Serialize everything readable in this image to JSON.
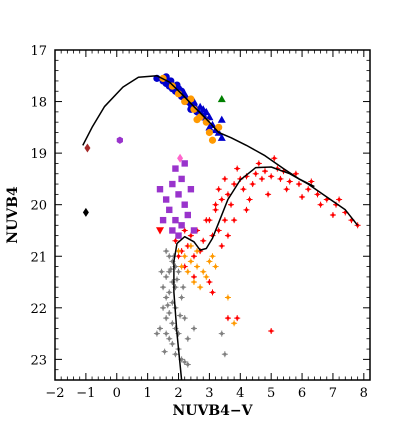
{
  "chart_data": {
    "type": "scatter",
    "xlabel": "NUVB4−V",
    "ylabel": "NUVB4",
    "xlim": [
      -2,
      8.2
    ],
    "ylim": [
      23.4,
      17
    ],
    "y_inverted": true,
    "xticks": [
      -2,
      -1,
      0,
      1,
      2,
      3,
      4,
      5,
      6,
      7,
      8
    ],
    "xtick_labels": [
      "−2",
      "−1",
      "0",
      "1",
      "2",
      "3",
      "4",
      "5",
      "6",
      "7",
      "8"
    ],
    "yticks": [
      17,
      18,
      19,
      20,
      21,
      22,
      23
    ],
    "ytick_labels": [
      "17",
      "18",
      "19",
      "20",
      "21",
      "22",
      "23"
    ],
    "grid": false,
    "colors": {
      "horizontal_branch": "#0000cc",
      "hb_orange": "#ff9900",
      "red_giant_branch": "#ff0000",
      "subgiant": "#ff9900",
      "main_sequence": "#808080",
      "purple": "#9933cc",
      "green": "#008000",
      "black": "#000000",
      "brown": "#a52a2a",
      "pink": "#ff66cc",
      "isochrone": "#000000"
    },
    "isochrones": [
      {
        "points": [
          [
            -1.1,
            18.85
          ],
          [
            -0.8,
            18.5
          ],
          [
            -0.4,
            18.1
          ],
          [
            0.2,
            17.72
          ],
          [
            0.7,
            17.53
          ],
          [
            1.3,
            17.5
          ],
          [
            1.7,
            17.62
          ],
          [
            2.1,
            17.85
          ],
          [
            2.5,
            18.1
          ],
          [
            3.0,
            18.4
          ],
          [
            3.3,
            18.6
          ],
          [
            3.7,
            18.7
          ],
          [
            4.2,
            18.85
          ],
          [
            4.8,
            19.05
          ],
          [
            5.4,
            19.3
          ],
          [
            5.9,
            19.5
          ],
          [
            6.4,
            19.65
          ]
        ]
      },
      {
        "points": [
          [
            2.1,
            23.4
          ],
          [
            1.95,
            22.5
          ],
          [
            1.85,
            21.7
          ],
          [
            1.85,
            21.1
          ],
          [
            1.95,
            20.75
          ],
          [
            2.2,
            20.62
          ],
          [
            2.5,
            20.72
          ],
          [
            2.7,
            20.88
          ],
          [
            2.9,
            20.85
          ],
          [
            3.1,
            20.65
          ],
          [
            3.3,
            20.35
          ],
          [
            3.6,
            19.9
          ],
          [
            4.0,
            19.52
          ],
          [
            4.5,
            19.28
          ],
          [
            5.0,
            19.27
          ],
          [
            5.6,
            19.4
          ],
          [
            6.2,
            19.6
          ],
          [
            6.8,
            19.85
          ],
          [
            7.4,
            20.1
          ],
          [
            7.8,
            20.4
          ]
        ]
      }
    ],
    "series": [
      {
        "marker": "circle",
        "color": "#0000cc",
        "points": [
          [
            1.3,
            17.55
          ],
          [
            1.5,
            17.6
          ],
          [
            1.6,
            17.65
          ],
          [
            1.7,
            17.7
          ],
          [
            1.75,
            17.6
          ],
          [
            1.8,
            17.75
          ],
          [
            1.9,
            17.8
          ],
          [
            2.0,
            17.75
          ],
          [
            2.1,
            17.9
          ],
          [
            2.2,
            17.95
          ],
          [
            2.3,
            18.0
          ],
          [
            2.1,
            17.8
          ],
          [
            2.4,
            18.05
          ],
          [
            2.5,
            18.1
          ],
          [
            2.6,
            18.2
          ],
          [
            2.4,
            18.15
          ],
          [
            1.6,
            17.52
          ],
          [
            1.95,
            17.68
          ],
          [
            2.7,
            18.25
          ],
          [
            2.8,
            18.3
          ]
        ]
      },
      {
        "marker": "triangle",
        "color": "#0000cc",
        "points": [
          [
            2.2,
            17.85
          ],
          [
            2.5,
            18.0
          ],
          [
            2.7,
            18.1
          ],
          [
            2.9,
            18.2
          ],
          [
            3.0,
            18.3
          ],
          [
            3.1,
            18.45
          ],
          [
            3.2,
            18.55
          ],
          [
            2.8,
            18.15
          ],
          [
            3.3,
            18.6
          ],
          [
            3.4,
            18.7
          ],
          [
            3.4,
            18.35
          ],
          [
            3.0,
            18.5
          ]
        ]
      },
      {
        "marker": "circle",
        "color": "#ff9900",
        "points": [
          [
            1.5,
            17.55
          ],
          [
            1.8,
            17.7
          ],
          [
            2.0,
            17.85
          ],
          [
            2.2,
            18.0
          ],
          [
            2.5,
            18.15
          ],
          [
            2.7,
            18.3
          ],
          [
            2.9,
            18.4
          ],
          [
            3.0,
            18.6
          ],
          [
            3.1,
            18.75
          ],
          [
            3.3,
            18.5
          ],
          [
            2.4,
            17.95
          ],
          [
            2.6,
            18.35
          ]
        ]
      },
      {
        "marker": "cross",
        "color": "#ff0000",
        "points": [
          [
            3.0,
            20.3
          ],
          [
            3.2,
            20.1
          ],
          [
            3.4,
            19.9
          ],
          [
            3.6,
            19.8
          ],
          [
            3.8,
            19.6
          ],
          [
            4.0,
            19.5
          ],
          [
            4.2,
            19.45
          ],
          [
            4.5,
            19.4
          ],
          [
            4.8,
            19.35
          ],
          [
            5.0,
            19.45
          ],
          [
            5.3,
            19.5
          ],
          [
            5.6,
            19.55
          ],
          [
            5.9,
            19.6
          ],
          [
            6.2,
            19.7
          ],
          [
            6.5,
            19.8
          ],
          [
            6.8,
            19.9
          ],
          [
            7.1,
            20.0
          ],
          [
            7.4,
            20.15
          ],
          [
            7.6,
            20.3
          ],
          [
            7.8,
            20.4
          ],
          [
            3.1,
            20.6
          ],
          [
            3.3,
            20.5
          ],
          [
            3.5,
            20.3
          ],
          [
            2.8,
            20.7
          ],
          [
            2.6,
            20.5
          ],
          [
            2.4,
            20.6
          ],
          [
            2.3,
            20.8
          ],
          [
            2.1,
            20.9
          ],
          [
            2.0,
            21.0
          ],
          [
            2.2,
            21.2
          ],
          [
            2.5,
            21.4
          ],
          [
            3.7,
            20.0
          ],
          [
            4.1,
            19.7
          ],
          [
            4.4,
            19.6
          ],
          [
            4.7,
            19.5
          ],
          [
            5.5,
            19.7
          ],
          [
            6.0,
            19.85
          ],
          [
            6.6,
            20.0
          ],
          [
            7.0,
            20.2
          ],
          [
            3.9,
            19.3
          ],
          [
            4.6,
            19.2
          ],
          [
            5.2,
            19.3
          ],
          [
            5.8,
            19.4
          ],
          [
            3.5,
            19.5
          ],
          [
            3.2,
            20.0
          ],
          [
            2.9,
            20.3
          ],
          [
            3.6,
            20.6
          ],
          [
            4.3,
            19.9
          ],
          [
            4.9,
            19.8
          ],
          [
            5.1,
            19.1
          ],
          [
            3.0,
            21.5
          ],
          [
            3.1,
            21.7
          ],
          [
            3.6,
            22.2
          ],
          [
            3.9,
            22.2
          ],
          [
            5.0,
            22.45
          ],
          [
            2.7,
            20.9
          ],
          [
            2.5,
            21.0
          ],
          [
            3.4,
            20.8
          ],
          [
            3.8,
            20.3
          ],
          [
            4.2,
            20.1
          ],
          [
            6.3,
            19.55
          ],
          [
            7.2,
            19.9
          ],
          [
            2.2,
            20.5
          ],
          [
            1.9,
            20.7
          ],
          [
            3.3,
            19.7
          ],
          [
            5.4,
            19.35
          ]
        ]
      },
      {
        "marker": "cross",
        "color": "#ff9900",
        "points": [
          [
            2.0,
            20.9
          ],
          [
            2.2,
            21.0
          ],
          [
            2.4,
            21.1
          ],
          [
            2.6,
            21.2
          ],
          [
            2.8,
            21.3
          ],
          [
            3.0,
            21.1
          ],
          [
            2.9,
            21.4
          ],
          [
            2.5,
            21.5
          ],
          [
            2.3,
            21.3
          ],
          [
            3.1,
            21.0
          ],
          [
            2.7,
            21.6
          ],
          [
            2.1,
            21.2
          ],
          [
            3.2,
            21.2
          ],
          [
            2.4,
            20.8
          ],
          [
            2.6,
            20.9
          ],
          [
            3.8,
            22.3
          ],
          [
            3.6,
            21.8
          ]
        ]
      },
      {
        "marker": "cross",
        "color": "#808080",
        "points": [
          [
            1.6,
            20.9
          ],
          [
            1.7,
            21.0
          ],
          [
            1.8,
            21.1
          ],
          [
            1.9,
            21.2
          ],
          [
            1.7,
            21.3
          ],
          [
            1.6,
            21.4
          ],
          [
            1.8,
            21.5
          ],
          [
            1.9,
            21.6
          ],
          [
            1.7,
            21.7
          ],
          [
            1.6,
            21.8
          ],
          [
            1.8,
            21.9
          ],
          [
            1.9,
            22.0
          ],
          [
            1.7,
            22.1
          ],
          [
            1.6,
            22.2
          ],
          [
            1.8,
            22.3
          ],
          [
            1.9,
            22.4
          ],
          [
            2.0,
            22.5
          ],
          [
            1.7,
            22.6
          ],
          [
            1.8,
            22.7
          ],
          [
            2.0,
            22.8
          ],
          [
            1.9,
            22.9
          ],
          [
            2.1,
            23.0
          ],
          [
            1.5,
            21.6
          ],
          [
            1.5,
            22.0
          ],
          [
            2.0,
            21.3
          ],
          [
            2.1,
            21.8
          ],
          [
            1.6,
            22.5
          ],
          [
            2.2,
            22.2
          ],
          [
            1.4,
            22.4
          ],
          [
            2.3,
            22.6
          ],
          [
            1.85,
            21.0
          ],
          [
            1.75,
            21.25
          ],
          [
            1.95,
            21.45
          ],
          [
            1.65,
            21.95
          ],
          [
            2.05,
            22.15
          ],
          [
            1.55,
            22.85
          ],
          [
            2.2,
            23.05
          ],
          [
            1.3,
            22.5
          ],
          [
            2.5,
            22.4
          ],
          [
            3.4,
            22.5
          ],
          [
            3.5,
            22.9
          ],
          [
            2.3,
            23.1
          ],
          [
            1.45,
            21.3
          ],
          [
            2.15,
            21.6
          ]
        ]
      },
      {
        "marker": "square",
        "color": "#9933cc",
        "points": [
          [
            1.9,
            19.3
          ],
          [
            2.1,
            19.5
          ],
          [
            1.8,
            19.6
          ],
          [
            2.0,
            19.8
          ],
          [
            2.2,
            20.0
          ],
          [
            1.7,
            20.1
          ],
          [
            1.9,
            20.3
          ],
          [
            2.1,
            20.4
          ],
          [
            2.3,
            20.2
          ],
          [
            1.6,
            19.9
          ],
          [
            2.0,
            20.6
          ],
          [
            1.5,
            20.3
          ],
          [
            2.4,
            19.7
          ],
          [
            1.8,
            20.5
          ],
          [
            2.2,
            19.2
          ],
          [
            2.5,
            20.5
          ],
          [
            1.4,
            19.7
          ]
        ]
      },
      {
        "marker": "hexagon",
        "color": "#9933cc",
        "points": [
          [
            0.1,
            18.75
          ]
        ]
      },
      {
        "marker": "triangle-down",
        "color": "#ff0000",
        "points": [
          [
            1.4,
            20.5
          ]
        ]
      },
      {
        "marker": "triangle",
        "color": "#008000",
        "points": [
          [
            3.4,
            17.95
          ]
        ]
      },
      {
        "marker": "diamond",
        "color": "#a52a2a",
        "points": [
          [
            -0.95,
            18.9
          ]
        ]
      },
      {
        "marker": "diamond",
        "color": "#000000",
        "points": [
          [
            -1.0,
            20.15
          ]
        ]
      },
      {
        "marker": "diamond",
        "color": "#ff66cc",
        "points": [
          [
            2.05,
            19.1
          ]
        ]
      }
    ]
  }
}
